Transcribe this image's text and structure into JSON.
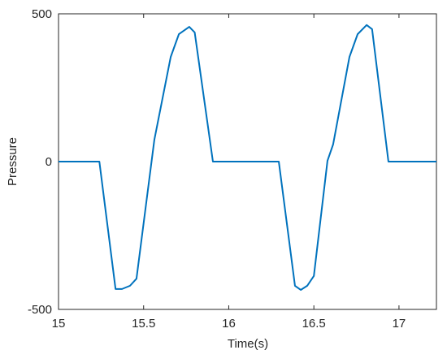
{
  "chart_data": {
    "type": "line",
    "x_label": "Time(s)",
    "y_label": "Pressure",
    "x": [
      15,
      15.24,
      15.335,
      15.373,
      15.42,
      15.458,
      15.563,
      15.659,
      15.707,
      15.768,
      15.8,
      15.907,
      16.294,
      16.389,
      16.423,
      16.461,
      16.5,
      16.58,
      16.613,
      16.709,
      16.757,
      16.81,
      16.842,
      16.938,
      17.22
    ],
    "series": [
      {
        "color": "#0072bd",
        "values": [
          0,
          0,
          -431,
          -431,
          -420,
          -396,
          74,
          354,
          431,
          456,
          437,
          0,
          0,
          -420,
          -434,
          -420,
          -387,
          3,
          58,
          354,
          431,
          462,
          448,
          0,
          0
        ]
      }
    ],
    "xlim": [
      15,
      17.22
    ],
    "ylim": [
      -500,
      500
    ],
    "xticks": [
      15,
      15.5,
      16,
      16.5,
      17
    ],
    "yticks": [
      -500,
      0,
      500
    ]
  }
}
